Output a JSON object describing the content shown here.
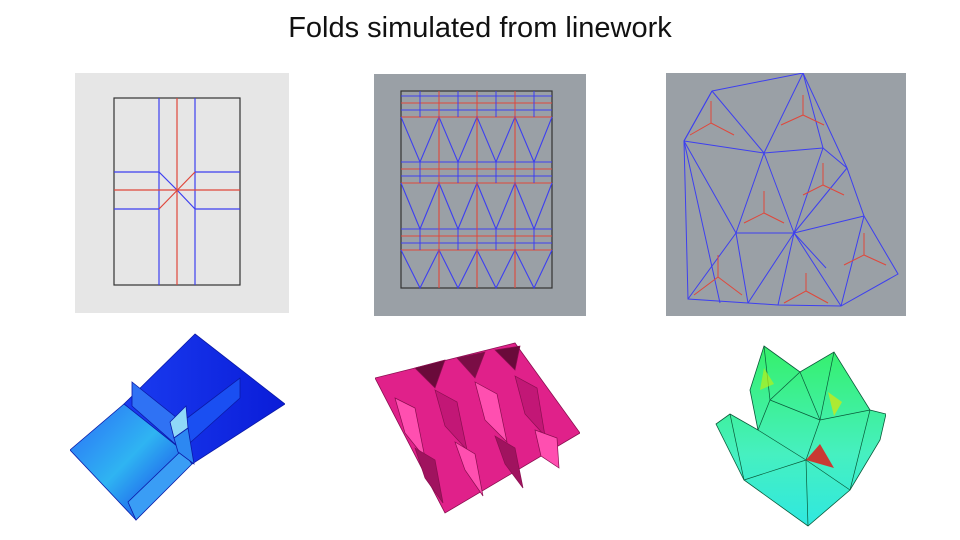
{
  "slide": {
    "title": "Folds simulated from linework"
  },
  "colors": {
    "mountain_line": "#e0473b",
    "valley_line": "#3d3ff0",
    "border_line": "#333333",
    "panel_bg_light": "#e6e6e6",
    "panel_bg_gray": "#9aa0a6",
    "blue_model": "#1a3cf5",
    "pink_model": "#e0218a",
    "green_model": "#35f06a"
  }
}
